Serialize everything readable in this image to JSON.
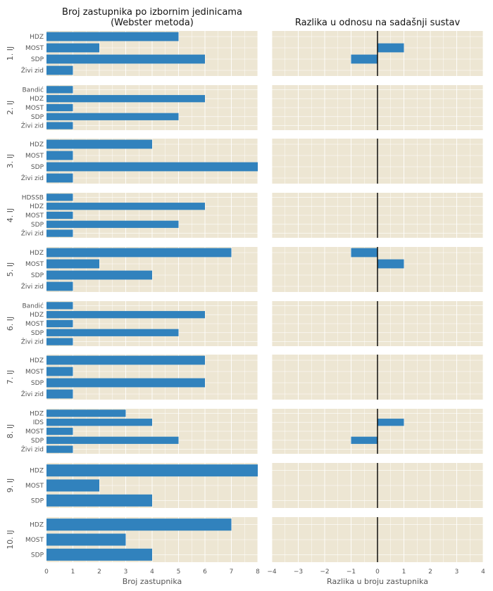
{
  "chart_data": [
    {
      "type": "bar",
      "orientation": "horizontal",
      "title": "Broj zastupnika po izbornim jedinicama\n(Webster metoda)",
      "xlabel": "Broj zastupnika",
      "xlim": [
        0,
        8
      ],
      "xticks": [
        "0",
        "1",
        "2",
        "3",
        "4",
        "5",
        "6",
        "7",
        "8"
      ],
      "facets": [
        {
          "label": "1. IJ",
          "categories": [
            "HDZ",
            "MOST",
            "SDP",
            "Živi zid"
          ],
          "values": [
            5,
            2,
            6,
            1
          ]
        },
        {
          "label": "2. IJ",
          "categories": [
            "Bandić",
            "HDZ",
            "MOST",
            "SDP",
            "Živi zid"
          ],
          "values": [
            1,
            6,
            1,
            5,
            1
          ]
        },
        {
          "label": "3. IJ",
          "categories": [
            "HDZ",
            "MOST",
            "SDP",
            "Živi zid"
          ],
          "values": [
            4,
            1,
            8,
            1
          ]
        },
        {
          "label": "4. IJ",
          "categories": [
            "HDSSB",
            "HDZ",
            "MOST",
            "SDP",
            "Živi zid"
          ],
          "values": [
            1,
            6,
            1,
            5,
            1
          ]
        },
        {
          "label": "5. IJ",
          "categories": [
            "HDZ",
            "MOST",
            "SDP",
            "Živi zid"
          ],
          "values": [
            7,
            2,
            4,
            1
          ]
        },
        {
          "label": "6. IJ",
          "categories": [
            "Bandić",
            "HDZ",
            "MOST",
            "SDP",
            "Živi zid"
          ],
          "values": [
            1,
            6,
            1,
            5,
            1
          ]
        },
        {
          "label": "7. IJ",
          "categories": [
            "HDZ",
            "MOST",
            "SDP",
            "Živi zid"
          ],
          "values": [
            6,
            1,
            6,
            1
          ]
        },
        {
          "label": "8. IJ",
          "categories": [
            "HDZ",
            "IDS",
            "MOST",
            "SDP",
            "Živi zid"
          ],
          "values": [
            3,
            4,
            1,
            5,
            1
          ]
        },
        {
          "label": "9. IJ",
          "categories": [
            "HDZ",
            "MOST",
            "SDP"
          ],
          "values": [
            8,
            2,
            4
          ]
        },
        {
          "label": "10. IJ",
          "categories": [
            "HDZ",
            "MOST",
            "SDP"
          ],
          "values": [
            7,
            3,
            4
          ]
        }
      ]
    },
    {
      "type": "bar",
      "orientation": "horizontal",
      "title": "Razlika u odnosu na sadašnji sustav",
      "xlabel": "Razlika u broju zastupnika",
      "xlim": [
        -4,
        4
      ],
      "xticks": [
        "−4",
        "−3",
        "−2",
        "−1",
        "0",
        "1",
        "2",
        "3",
        "4"
      ],
      "facets": [
        {
          "label": "1. IJ",
          "values": [
            0,
            1,
            -1,
            0
          ]
        },
        {
          "label": "2. IJ",
          "values": [
            0,
            0,
            0,
            0,
            0
          ]
        },
        {
          "label": "3. IJ",
          "values": [
            0,
            0,
            0,
            0
          ]
        },
        {
          "label": "4. IJ",
          "values": [
            0,
            0,
            0,
            0,
            0
          ]
        },
        {
          "label": "5. IJ",
          "values": [
            -1,
            1,
            0,
            0
          ]
        },
        {
          "label": "6. IJ",
          "values": [
            0,
            0,
            0,
            0,
            0
          ]
        },
        {
          "label": "7. IJ",
          "values": [
            0,
            0,
            0,
            0
          ]
        },
        {
          "label": "8. IJ",
          "values": [
            0,
            1,
            0,
            -1,
            0
          ]
        },
        {
          "label": "9. IJ",
          "values": [
            0,
            0,
            0
          ]
        },
        {
          "label": "10. IJ",
          "values": [
            0,
            0,
            0
          ]
        }
      ]
    }
  ],
  "colors": {
    "bar": "#3182bd",
    "panel_bg": "#ede6d3",
    "grid": "#ffffff",
    "zero_line": "#000000"
  },
  "grid": true
}
